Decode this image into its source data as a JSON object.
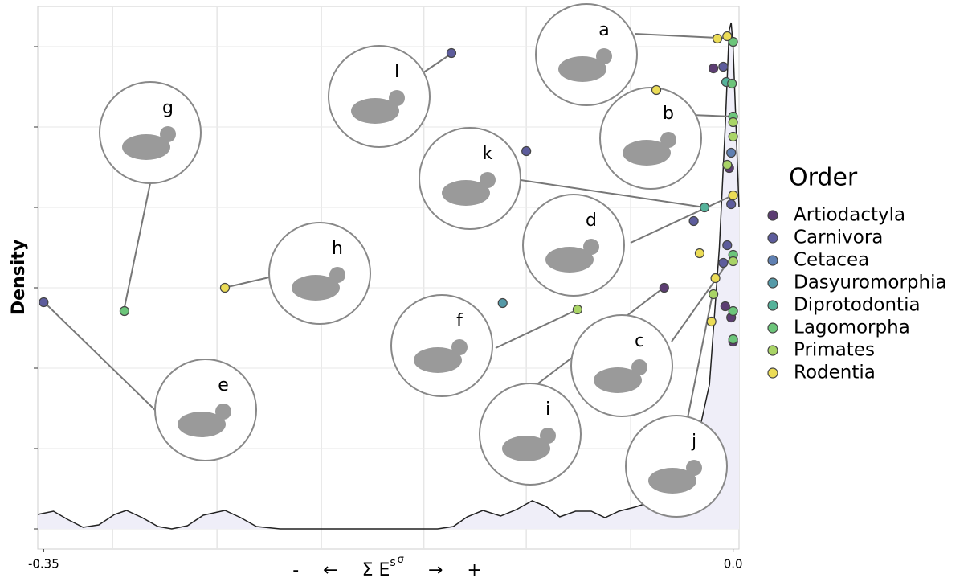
{
  "chart_data": {
    "type": "scatter",
    "y_label": "Density",
    "x_label": [
      "-",
      "←",
      "Σ E",
      "s",
      "σ",
      "→",
      "+"
    ],
    "xlim": [
      -0.353,
      0.003
    ],
    "xticks": [
      -0.35,
      {
        "value": 0,
        "label": "0.0"
      }
    ],
    "xgrid": [
      -0.315,
      -0.262,
      -0.209,
      -0.157,
      -0.105,
      -0.052
    ],
    "ylim": [
      -0.25,
      6.5
    ],
    "yticks": [
      0,
      1,
      2,
      3,
      4,
      5,
      6
    ],
    "grid": true,
    "legend_title": "Order",
    "legend": "right",
    "series": [
      {
        "name": "Artiodactyla",
        "color": "#5c3d72",
        "x": [
          -0.035,
          -0.01,
          -0.002,
          -0.004,
          -0.001,
          0.0
        ],
        "y": [
          3.0,
          5.73,
          4.49,
          2.77,
          2.63,
          2.33
        ]
      },
      {
        "name": "Carnivora",
        "color": "#5d5c9c",
        "x": [
          -0.35,
          -0.143,
          -0.105,
          -0.02,
          -0.005,
          -0.001,
          -0.003,
          -0.005
        ],
        "y": [
          2.82,
          5.92,
          4.7,
          3.83,
          5.75,
          4.04,
          3.53,
          3.31
        ]
      },
      {
        "name": "Cetacea",
        "color": "#5f80b2",
        "x": [
          -0.001
        ],
        "y": [
          4.68
        ]
      },
      {
        "name": "Dasyuromorphia",
        "color": "#559aa8",
        "x": [
          -0.117
        ],
        "y": [
          2.81
        ]
      },
      {
        "name": "Diprotodontia",
        "color": "#55b29a",
        "x": [
          -0.0145,
          -0.0035
        ],
        "y": [
          4.0,
          5.56
        ]
      },
      {
        "name": "Lagomorpha",
        "color": "#6cc57a",
        "x": [
          -0.309,
          0.0,
          -0.0006,
          0.0,
          0.0,
          0.0,
          0.0
        ],
        "y": [
          2.71,
          6.06,
          5.54,
          5.13,
          3.41,
          2.71,
          2.36
        ]
      },
      {
        "name": "Primates",
        "color": "#a9d466",
        "x": [
          -0.079,
          0.0,
          0.0,
          -0.003,
          0.0,
          -0.01
        ],
        "y": [
          2.73,
          5.06,
          4.88,
          4.53,
          3.33,
          2.92
        ]
      },
      {
        "name": "Rodentia",
        "color": "#ebdc56",
        "x": [
          -0.258,
          -0.039,
          -0.017,
          -0.008,
          -0.003,
          0.0,
          -0.009,
          -0.011
        ],
        "y": [
          3.0,
          5.46,
          3.43,
          6.1,
          6.13,
          4.15,
          3.12,
          2.58
        ]
      }
    ],
    "density": {
      "color": "#222222",
      "fill": "#efeef8",
      "x": [
        -0.353,
        -0.345,
        -0.338,
        -0.33,
        -0.322,
        -0.314,
        -0.308,
        -0.3,
        -0.292,
        -0.285,
        -0.277,
        -0.269,
        -0.258,
        -0.25,
        -0.242,
        -0.23,
        -0.15,
        -0.142,
        -0.135,
        -0.127,
        -0.118,
        -0.11,
        -0.102,
        -0.095,
        -0.088,
        -0.08,
        -0.072,
        -0.065,
        -0.058,
        -0.05,
        -0.04,
        -0.03,
        -0.02,
        -0.012,
        -0.007,
        -0.004,
        -0.002,
        -0.001,
        0.0,
        0.003
      ],
      "y": [
        0.18,
        0.22,
        0.12,
        0.02,
        0.05,
        0.18,
        0.23,
        0.14,
        0.03,
        0.0,
        0.04,
        0.17,
        0.23,
        0.14,
        0.03,
        0.0,
        0.0,
        0.03,
        0.15,
        0.23,
        0.16,
        0.24,
        0.35,
        0.28,
        0.15,
        0.22,
        0.22,
        0.14,
        0.22,
        0.27,
        0.35,
        0.55,
        0.9,
        1.8,
        3.5,
        5.0,
        6.2,
        6.3,
        6.0,
        4.0
      ]
    },
    "callouts": [
      "a",
      "b",
      "c",
      "d",
      "e",
      "f",
      "g",
      "h",
      "i",
      "j",
      "k",
      "l"
    ]
  }
}
